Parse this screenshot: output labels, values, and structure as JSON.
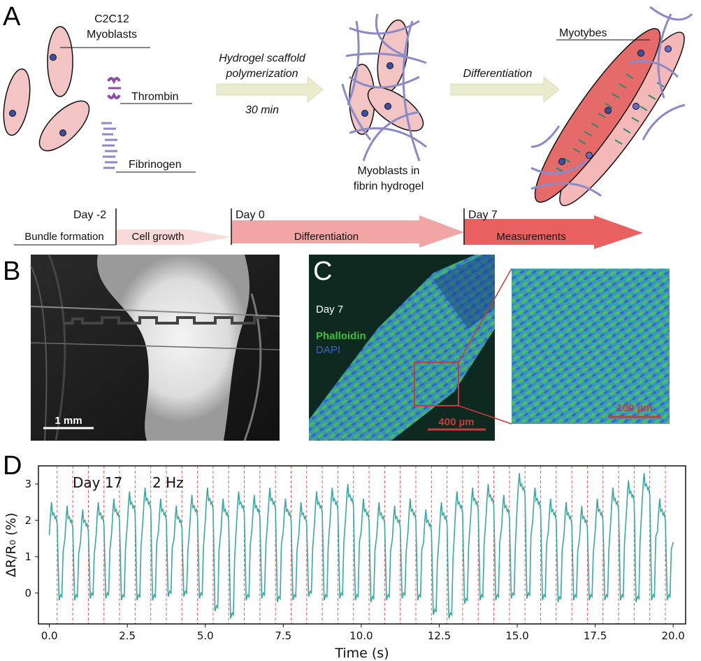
{
  "panel_labels": {
    "a": "A",
    "b": "B",
    "c": "C",
    "d": "D"
  },
  "schematic": {
    "myoblasts_label": [
      "C2C12",
      "Myoblasts"
    ],
    "thrombin_label": "Thrombin",
    "fibrinogen_label": "Fibrinogen",
    "step1_line1": "Hydrogel scaffold",
    "step1_line2": "polymerization",
    "step1_time": "30 min",
    "hydrogel_label": [
      "Myoblasts in",
      "fibrin hydrogel"
    ],
    "step2": "Differentiation",
    "myotubes_label": "Myotybes"
  },
  "timeline": {
    "day_minus2": "Day -2",
    "day0": "Day 0",
    "day7": "Day 7",
    "phases": [
      "Bundle formation",
      "Cell growth",
      "Differentiation",
      "Measurements"
    ]
  },
  "panel_b": {
    "scale": "1 mm"
  },
  "panel_c": {
    "day": "Day 7",
    "stain1": "Phalloidin",
    "stain2": "DAPI",
    "scale_left": "400 µm",
    "scale_right": "100 µm"
  },
  "colors": {
    "line": "#3aa7a2",
    "stim": "#e85a5a",
    "phalloidin": "#3fbf3f",
    "dapi": "#3f5fd0",
    "cell": "#f2c4c4",
    "fibrin": "#8a8ac8"
  },
  "chart_data": {
    "type": "line",
    "title": "",
    "xlabel": "Time (s)",
    "ylabel": "ΔR/R₀ (%)",
    "xlim": [
      -0.35,
      20.4
    ],
    "ylim": [
      -0.85,
      3.5
    ],
    "xticks": [
      "0.0",
      "2.5",
      "5.0",
      "7.5",
      "10.0",
      "12.5",
      "15.0",
      "17.5",
      "20.0"
    ],
    "yticks": [
      "0",
      "1",
      "2",
      "3"
    ],
    "annotations": [
      "Day 17",
      "2 Hz"
    ],
    "stimulation_period_s": 0.5,
    "stimulation_first_s": 0.25,
    "stimulation_count": 40,
    "series": [
      {
        "name": "ΔR/R0",
        "cycle_period_s": 0.5,
        "start_s": 0.0,
        "peaks": [
          2.5,
          2.4,
          2.3,
          2.5,
          2.6,
          2.8,
          2.9,
          2.6,
          2.4,
          2.7,
          2.9,
          2.6,
          2.8,
          2.7,
          2.9,
          2.6,
          2.5,
          2.8,
          2.9,
          3.0,
          2.6,
          2.5,
          2.4,
          2.6,
          2.3,
          2.5,
          2.8,
          2.9,
          3.0,
          2.7,
          3.3,
          2.9,
          2.6,
          2.5,
          2.4,
          2.6,
          2.9,
          3.1,
          3.3,
          2.6
        ],
        "troughs": [
          -0.2,
          -0.2,
          -0.15,
          -0.15,
          -0.2,
          -0.2,
          -0.2,
          -0.1,
          -0.1,
          -0.15,
          -0.5,
          -0.7,
          -0.2,
          -0.15,
          -0.25,
          -0.2,
          -0.1,
          -0.2,
          -0.15,
          -0.2,
          -0.25,
          -0.2,
          -0.15,
          -0.2,
          -0.6,
          -0.7,
          -0.3,
          -0.2,
          -0.2,
          -0.15,
          -0.15,
          -0.2,
          -0.25,
          -0.2,
          -0.2,
          -0.2,
          -0.2,
          -0.25,
          -0.2,
          -0.2
        ],
        "end_value": 1.4
      }
    ]
  }
}
